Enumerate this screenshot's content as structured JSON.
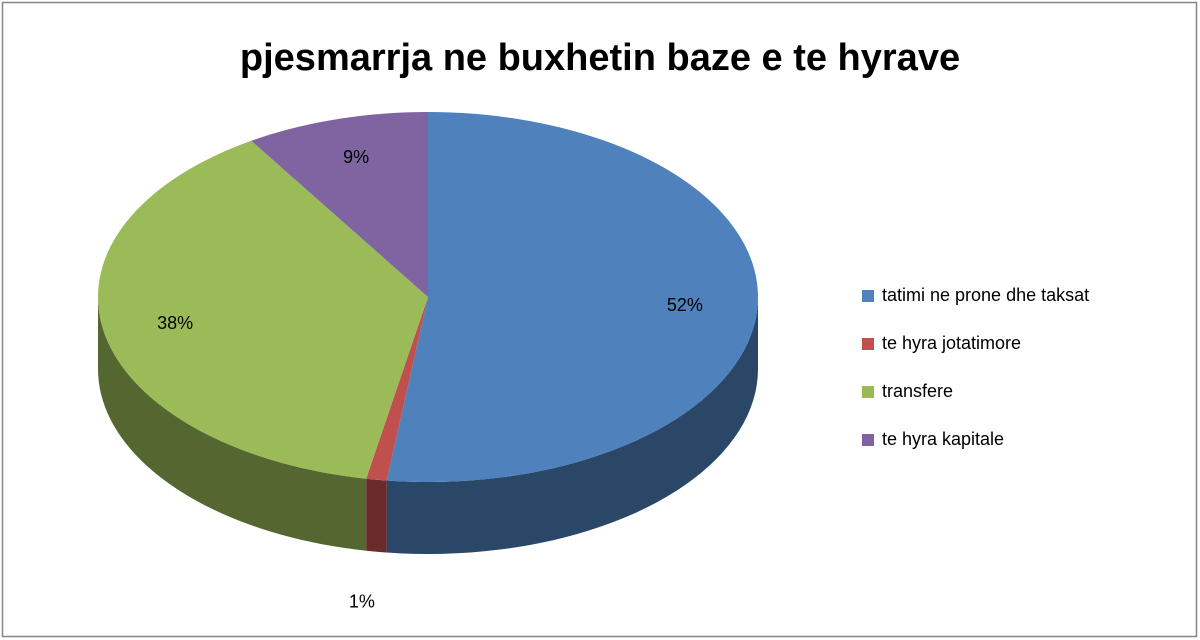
{
  "chart_data": {
    "type": "pie",
    "title": "pjesmarrja ne buxhetin baze e te hyrave",
    "categories": [
      "tatimi ne prone dhe taksat",
      "te hyra jotatimore",
      "transfere",
      "te hyra kapitale"
    ],
    "values": [
      52,
      1,
      38,
      9
    ],
    "value_labels": [
      "52%",
      "1%",
      "38%",
      "9%"
    ],
    "colors": [
      "#4f81bd",
      "#c0504d",
      "#9bbb59",
      "#8064a2"
    ],
    "legend": "right"
  }
}
